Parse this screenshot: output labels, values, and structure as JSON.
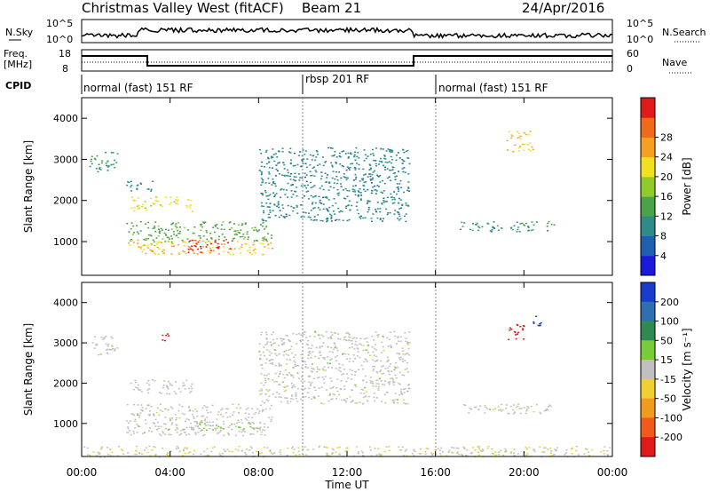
{
  "header": {
    "title": "Christmas Valley West (fitACF)",
    "beam": "Beam 21",
    "date": "24/Apr/2016"
  },
  "noise_panel": {
    "left_label": "N.Sky",
    "right_label": "N.Search",
    "tick_labels": [
      "10^5",
      "10^0"
    ]
  },
  "freq_panel": {
    "left_label_1": "Freq.",
    "left_label_2": "[MHz]",
    "right_label": "Nave",
    "left_ticks": [
      "18",
      "8"
    ],
    "right_ticks": [
      "60",
      "0"
    ]
  },
  "cpid": {
    "label": "CPID",
    "segments": [
      {
        "label": "normal (fast) 151 RF",
        "start_hour": 0,
        "end_hour": 10
      },
      {
        "label": "rbsp 201 RF",
        "start_hour": 10,
        "end_hour": 16
      },
      {
        "label": "normal (fast) 151 RF",
        "start_hour": 16,
        "end_hour": 24
      }
    ]
  },
  "power_panel": {
    "ylabel": "Slant Range [km]",
    "yticks": [
      "4000",
      "3000",
      "2000",
      "1000"
    ],
    "colorbar_label": "Power [dB]",
    "colorbar_ticks": [
      "28",
      "24",
      "20",
      "16",
      "12",
      "8",
      "4"
    ],
    "colors": [
      "#1a1adc",
      "#1f5fb0",
      "#2f8a8a",
      "#4aa24a",
      "#8fcc2a",
      "#f0e020",
      "#f5a020",
      "#ef6a1a",
      "#e01a1a"
    ]
  },
  "velocity_panel": {
    "ylabel": "Slant Range [km]",
    "yticks": [
      "4000",
      "3000",
      "2000",
      "1000"
    ],
    "colorbar_label": "Velocity [m s⁻¹]",
    "colorbar_ticks": [
      "200",
      "100",
      "50",
      "15",
      "-15",
      "-50",
      "-100",
      "-200"
    ],
    "colors": [
      "#1a3ccc",
      "#2f6fb0",
      "#2e8a50",
      "#7acb3a",
      "#c0c0c0",
      "#f0d030",
      "#f09a20",
      "#f05a1a",
      "#e01a1a"
    ]
  },
  "xaxis": {
    "label": "Time UT",
    "ticks": [
      "00:00",
      "04:00",
      "08:00",
      "12:00",
      "16:00",
      "20:00",
      "00:00"
    ]
  },
  "chart_data": {
    "type": "heatmap",
    "title": "Christmas Valley West (fitACF)",
    "xlabel": "Time UT",
    "ylabel": "Slant Range [km]",
    "xlim_hours": [
      0,
      24
    ],
    "ylim_km": [
      180,
      4500
    ],
    "panels": [
      {
        "quantity": "Power",
        "units": "dB",
        "colorbar_range": [
          0,
          30
        ],
        "regions": [
          {
            "t0": 0.3,
            "t1": 1.6,
            "r0": 2700,
            "r1": 3200,
            "value": 10
          },
          {
            "t0": 2.0,
            "t1": 3.2,
            "r0": 2200,
            "r1": 2500,
            "value": 8
          },
          {
            "t0": 2.2,
            "t1": 5.0,
            "r0": 1750,
            "r1": 2100,
            "value": 18
          },
          {
            "t0": 2.0,
            "t1": 8.6,
            "r0": 1000,
            "r1": 1500,
            "value": 12
          },
          {
            "t0": 2.0,
            "t1": 8.6,
            "r0": 700,
            "r1": 1050,
            "value": 20
          },
          {
            "t0": 4.8,
            "t1": 6.8,
            "r0": 750,
            "r1": 1050,
            "value": 28
          },
          {
            "t0": 8.0,
            "t1": 14.8,
            "r0": 1500,
            "r1": 3300,
            "value": 8
          },
          {
            "t0": 17.0,
            "t1": 21.4,
            "r0": 1250,
            "r1": 1500,
            "value": 10
          },
          {
            "t0": 19.2,
            "t1": 20.4,
            "r0": 3200,
            "r1": 3700,
            "value": 20
          }
        ]
      },
      {
        "quantity": "Velocity",
        "units": "m s-1",
        "colorbar_range": [
          -200,
          200
        ],
        "regions": [
          {
            "t0": 0.3,
            "t1": 1.6,
            "r0": 2700,
            "r1": 3200,
            "value": 0
          },
          {
            "t0": 2.2,
            "t1": 5.0,
            "r0": 1750,
            "r1": 2100,
            "value": 0
          },
          {
            "t0": 2.0,
            "t1": 8.6,
            "r0": 700,
            "r1": 1500,
            "value": 0
          },
          {
            "t0": 5.2,
            "t1": 8.0,
            "r0": 850,
            "r1": 1050,
            "value": 30
          },
          {
            "t0": 3.6,
            "t1": 4.0,
            "r0": 3050,
            "r1": 3300,
            "value": -200
          },
          {
            "t0": 8.0,
            "t1": 14.8,
            "r0": 1500,
            "r1": 3300,
            "value": 0
          },
          {
            "t0": 17.0,
            "t1": 21.4,
            "r0": 1250,
            "r1": 1500,
            "value": 0
          },
          {
            "t0": 19.2,
            "t1": 20.0,
            "r0": 3050,
            "r1": 3500,
            "value": -200
          },
          {
            "t0": 20.4,
            "t1": 20.8,
            "r0": 3300,
            "r1": 3700,
            "value": 200
          },
          {
            "t0": 0.0,
            "t1": 24.0,
            "r0": 180,
            "r1": 450,
            "value": -15
          }
        ]
      }
    ]
  }
}
